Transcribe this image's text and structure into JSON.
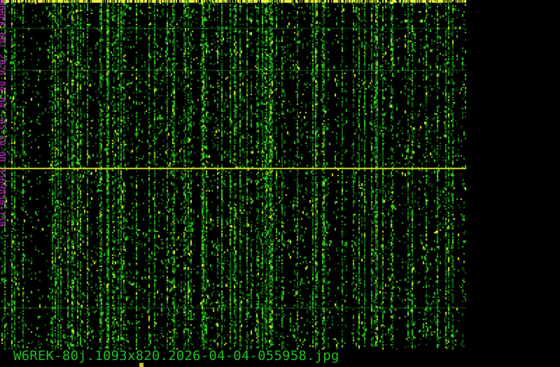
{
  "image": {
    "filename": "W6REK-80j.1093x820.2026-04-04-055958.jpg",
    "overlay_label": "W6REK-80j 2026-04-04--05-50-00 3569850+150",
    "colors": {
      "signal": "#20c020",
      "strong": "#e0e020",
      "label": "#d020d0",
      "background": "#000000"
    }
  }
}
